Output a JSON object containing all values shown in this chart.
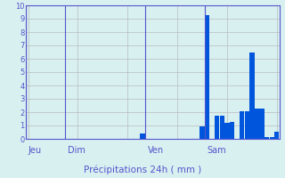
{
  "title": "",
  "xlabel": "Précipitations 24h ( mm )",
  "ylabel": "",
  "ylim": [
    0,
    10
  ],
  "yticks": [
    0,
    1,
    2,
    3,
    4,
    5,
    6,
    7,
    8,
    9,
    10
  ],
  "background_color": "#d8f0f0",
  "bar_color": "#0055dd",
  "grid_color": "#bbbbbb",
  "label_color": "#5555cc",
  "day_labels": [
    "Jeu",
    "Dim",
    "Ven",
    "Sam"
  ],
  "day_positions": [
    0,
    8,
    24,
    36
  ],
  "n_bars": 51,
  "bar_values": [
    0,
    0,
    0,
    0,
    0,
    0,
    0,
    0,
    0,
    0,
    0,
    0,
    0,
    0,
    0,
    0,
    0,
    0,
    0,
    0,
    0,
    0,
    0,
    0.4,
    0,
    0,
    0,
    0,
    0,
    0,
    0,
    0,
    0,
    0,
    0,
    0.95,
    9.3,
    0,
    1.75,
    1.75,
    1.2,
    1.3,
    0,
    2.1,
    2.1,
    6.5,
    2.3,
    2.3,
    0.15,
    0.15,
    0.55
  ]
}
